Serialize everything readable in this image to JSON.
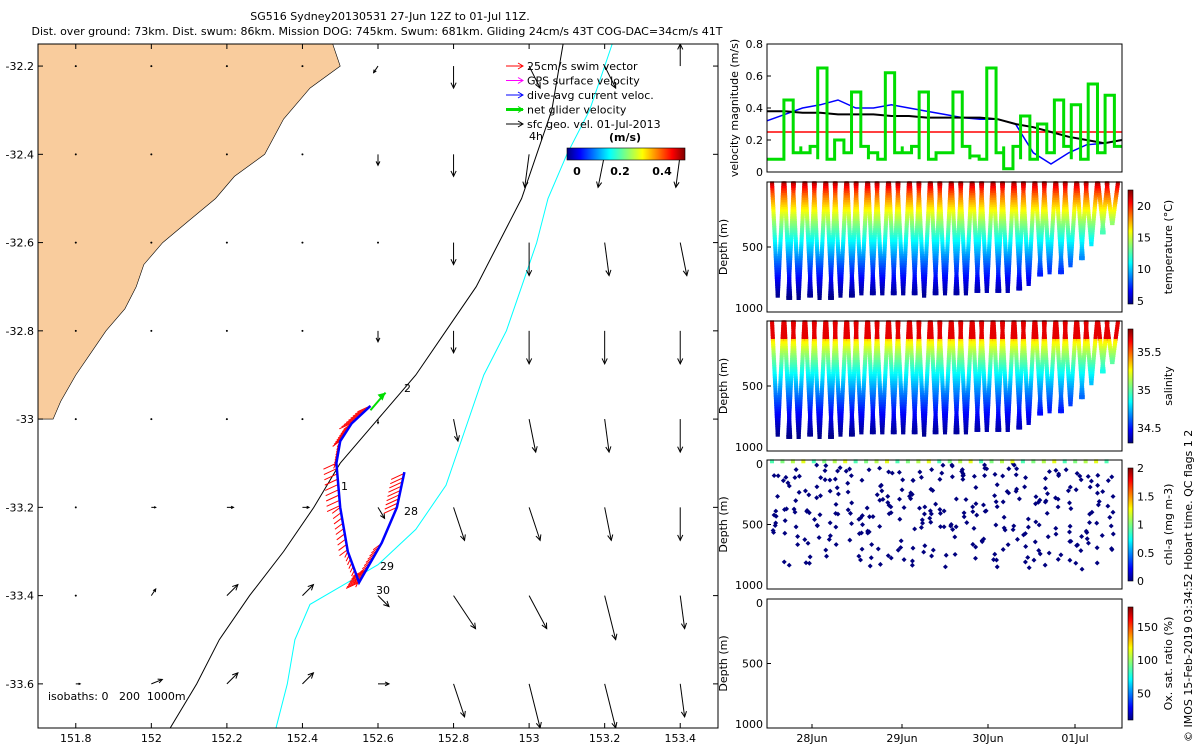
{
  "header": {
    "title_line1": "SG516 Sydney20130531 27-Jun 12Z to 01-Jul 11Z.",
    "title_line2": "Dist. over ground: 73km. Dist. swum: 86km. Mission DOG: 745km. Swum: 681km. Gliding 24cm/s 43T COG-DAC=34cm/s 41T"
  },
  "credit": "© IMOS 15-Feb-2019 03:34:52 Hobart time. QC flags 1 2",
  "chart_data": [
    {
      "type": "scatter",
      "panel": "map",
      "xlim": [
        151.7,
        153.5
      ],
      "ylim": [
        -33.7,
        -32.15
      ],
      "xticks": [
        "151.8",
        "152",
        "152.2",
        "152.4",
        "152.6",
        "152.8",
        "153",
        "153.2",
        "153.4"
      ],
      "yticks": [
        "-32.2",
        "-32.4",
        "-32.6",
        "-32.8",
        "-33",
        "-33.2",
        "-33.4",
        "-33.6"
      ],
      "legend": {
        "placement": "top-right",
        "entries": [
          {
            "label": "25cm/s swim vector",
            "color": "#ff0000"
          },
          {
            "label": "GPS surface velocity",
            "color": "#ff00ff"
          },
          {
            "label": "dive-avg current veloc.",
            "color": "#0000ff"
          },
          {
            "label": "net glider velocity",
            "color": "#00dd00"
          },
          {
            "label": "sfc geo. vel. 01-Jul-2013",
            "color": "#000000"
          }
        ]
      },
      "colorbar": {
        "label": "(m/s)",
        "ticks": [
          "0",
          "0.2",
          "0.4"
        ]
      },
      "isobath_note": "isobaths: 0   200  1000m",
      "annotations": [
        "4h",
        "2",
        "1",
        "28",
        "29",
        "30"
      ],
      "coastline": [
        [
          151.7,
          -32.15
        ],
        [
          152.48,
          -32.15
        ],
        [
          152.5,
          -32.2
        ],
        [
          152.42,
          -32.25
        ],
        [
          152.35,
          -32.32
        ],
        [
          152.3,
          -32.4
        ],
        [
          152.22,
          -32.45
        ],
        [
          152.17,
          -32.5
        ],
        [
          152.1,
          -32.55
        ],
        [
          152.03,
          -32.6
        ],
        [
          151.98,
          -32.65
        ],
        [
          151.96,
          -32.7
        ],
        [
          151.93,
          -32.75
        ],
        [
          151.88,
          -32.8
        ],
        [
          151.84,
          -32.85
        ],
        [
          151.8,
          -32.9
        ],
        [
          151.76,
          -32.96
        ],
        [
          151.74,
          -33.0
        ],
        [
          151.7,
          -33.0
        ]
      ],
      "isobath_200": [
        [
          152.05,
          -33.7
        ],
        [
          152.12,
          -33.6
        ],
        [
          152.18,
          -33.5
        ],
        [
          152.26,
          -33.4
        ],
        [
          152.35,
          -33.3
        ],
        [
          152.43,
          -33.2
        ],
        [
          152.5,
          -33.1
        ],
        [
          152.6,
          -33.0
        ],
        [
          152.7,
          -32.9
        ],
        [
          152.78,
          -32.8
        ],
        [
          152.86,
          -32.7
        ],
        [
          152.92,
          -32.6
        ],
        [
          152.98,
          -32.5
        ],
        [
          153.02,
          -32.4
        ],
        [
          153.06,
          -32.3
        ],
        [
          153.08,
          -32.2
        ],
        [
          153.09,
          -32.15
        ]
      ],
      "isobath_1000": [
        [
          152.33,
          -33.7
        ],
        [
          152.36,
          -33.6
        ],
        [
          152.38,
          -33.5
        ],
        [
          152.42,
          -33.42
        ],
        [
          152.5,
          -33.38
        ],
        [
          152.6,
          -33.33
        ],
        [
          152.7,
          -33.25
        ],
        [
          152.78,
          -33.15
        ],
        [
          152.84,
          -33.0
        ],
        [
          152.88,
          -32.9
        ],
        [
          152.94,
          -32.8
        ],
        [
          152.98,
          -32.7
        ],
        [
          153.02,
          -32.6
        ],
        [
          153.05,
          -32.5
        ],
        [
          153.1,
          -32.4
        ],
        [
          153.16,
          -32.3
        ],
        [
          153.2,
          -32.2
        ],
        [
          153.22,
          -32.15
        ]
      ],
      "glider_track": [
        [
          152.58,
          -32.97
        ],
        [
          152.53,
          -33.01
        ],
        [
          152.5,
          -33.05
        ],
        [
          152.49,
          -33.1
        ],
        [
          152.5,
          -33.2
        ],
        [
          152.52,
          -33.3
        ],
        [
          152.55,
          -33.37
        ],
        [
          152.57,
          -33.34
        ],
        [
          152.61,
          -33.28
        ],
        [
          152.65,
          -33.2
        ],
        [
          152.67,
          -33.12
        ]
      ],
      "net_velocity_arrow": [
        [
          152.58,
          -32.98
        ],
        [
          152.62,
          -32.94
        ]
      ],
      "grid_arrows": {
        "lon": [
          151.8,
          152.0,
          152.2,
          152.4,
          152.6,
          152.8,
          153.0,
          153.2,
          153.4
        ],
        "lat": [
          -32.2,
          -32.4,
          -32.6,
          -32.8,
          -33.0,
          -33.2,
          -33.4,
          -33.6
        ],
        "u": [
          [
            0,
            0,
            0,
            0,
            -0.02,
            0.0,
            0.05,
            0.05,
            0.0
          ],
          [
            0,
            0,
            0,
            0,
            0.0,
            0.0,
            -0.02,
            -0.03,
            -0.02
          ],
          [
            0,
            0,
            0,
            0.0,
            0.0,
            0.0,
            0.0,
            0.02,
            0.03
          ],
          [
            0,
            0,
            0,
            0.0,
            0.0,
            0.0,
            0.0,
            0.0,
            0.0
          ],
          [
            0,
            0,
            0.0,
            0.0,
            0.0,
            0.02,
            0.03,
            0.02,
            0.0
          ],
          [
            0.0,
            0.02,
            0.03,
            0.03,
            0.03,
            0.05,
            0.05,
            0.03,
            0.0
          ],
          [
            0.0,
            0.02,
            0.05,
            0.05,
            0.05,
            0.1,
            0.08,
            0.05,
            0.02
          ],
          [
            0.02,
            0.05,
            0.05,
            0.05,
            0.05,
            0.05,
            0.05,
            0.05,
            0.02
          ]
        ],
        "v": [
          [
            0,
            0,
            0,
            0,
            -0.03,
            -0.1,
            -0.1,
            -0.1,
            0.1
          ],
          [
            0,
            0,
            0,
            0,
            -0.05,
            -0.1,
            -0.15,
            -0.15,
            -0.15
          ],
          [
            0,
            0,
            0,
            0.0,
            0.0,
            -0.1,
            -0.15,
            -0.15,
            -0.15
          ],
          [
            0,
            0,
            0,
            0.0,
            -0.05,
            -0.1,
            -0.15,
            -0.15,
            -0.15
          ],
          [
            0,
            0,
            0.0,
            0.0,
            -0.02,
            -0.1,
            -0.15,
            -0.15,
            -0.15
          ],
          [
            0.0,
            0.0,
            0.0,
            0.0,
            -0.05,
            -0.15,
            -0.15,
            -0.15,
            -0.15
          ],
          [
            0.0,
            0.03,
            0.05,
            0.05,
            -0.05,
            -0.15,
            -0.15,
            -0.2,
            -0.15
          ],
          [
            0.0,
            0.02,
            0.05,
            0.05,
            0.0,
            -0.15,
            -0.2,
            -0.2,
            -0.15
          ]
        ]
      }
    },
    {
      "type": "line",
      "panel": "velocity",
      "ylabel": "velocity magnitude (m/s)",
      "ylim": [
        0,
        0.8
      ],
      "yticks": [
        "0",
        "0.2",
        "0.4",
        "0.6",
        "0.8"
      ],
      "series": [
        {
          "color": "#ff0000",
          "values": [
            0.25,
            0.25,
            0.25,
            0.25,
            0.25,
            0.25,
            0.25,
            0.25,
            0.25,
            0.25,
            0.25,
            0.25,
            0.25,
            0.25,
            0.25,
            0.25,
            0.25,
            0.25,
            0.25,
            0.25,
            0.25
          ]
        },
        {
          "color": "#0000ff",
          "values": [
            0.32,
            0.36,
            0.4,
            0.42,
            0.45,
            0.4,
            0.4,
            0.42,
            0.4,
            0.38,
            0.36,
            0.34,
            0.33,
            0.33,
            0.3,
            0.12,
            0.05,
            0.12,
            0.17,
            0.18,
            0.2
          ]
        },
        {
          "color": "#000000",
          "values": [
            0.38,
            0.38,
            0.37,
            0.37,
            0.36,
            0.36,
            0.36,
            0.35,
            0.35,
            0.34,
            0.34,
            0.34,
            0.34,
            0.33,
            0.3,
            0.28,
            0.25,
            0.22,
            0.2,
            0.18,
            0.2
          ]
        },
        {
          "color": "#00dd00",
          "values": [
            0.08,
            0.45,
            0.12,
            0.65,
            0.2,
            0.5,
            0.12,
            0.62,
            0.12,
            0.5,
            0.12,
            0.5,
            0.1,
            0.65,
            0.02,
            0.35,
            0.3,
            0.45,
            0.42,
            0.55,
            0.48
          ]
        }
      ]
    },
    {
      "type": "scatter",
      "panel": "temperature",
      "ylabel": "Depth (m)",
      "ylim": [
        1000,
        0
      ],
      "yticks": [
        "500",
        "1000"
      ],
      "colorbar": {
        "label": "temperature (°C)",
        "range": [
          4.5,
          22.5
        ],
        "ticks": [
          "5",
          "10",
          "15",
          "20"
        ]
      },
      "dives": 33,
      "max_depth_per_dive": [
        880,
        900,
        900,
        890,
        900,
        900,
        880,
        880,
        870,
        860,
        870,
        860,
        860,
        870,
        880,
        870,
        860,
        860,
        860,
        850,
        850,
        840,
        840,
        830,
        800,
        720,
        700,
        700,
        650,
        600,
        480,
        400,
        330
      ]
    },
    {
      "type": "scatter",
      "panel": "salinity",
      "ylabel": "Depth (m)",
      "ylim": [
        1000,
        0
      ],
      "yticks": [
        "500",
        "1000"
      ],
      "colorbar": {
        "label": "salinity",
        "range": [
          34.3,
          35.8
        ],
        "ticks": [
          "34.5",
          "35",
          "35.5"
        ]
      },
      "dives": 33,
      "max_depth_per_dive": [
        880,
        900,
        900,
        890,
        900,
        900,
        880,
        880,
        870,
        860,
        870,
        860,
        860,
        870,
        880,
        870,
        860,
        860,
        860,
        850,
        850,
        840,
        840,
        830,
        800,
        720,
        700,
        700,
        650,
        600,
        480,
        400,
        330
      ]
    },
    {
      "type": "scatter",
      "panel": "chlorophyll",
      "ylabel": "Depth (m)",
      "ylim": [
        1000,
        0
      ],
      "yticks": [
        "0",
        "500",
        "1000"
      ],
      "colorbar": {
        "label": "chl-a (mg m-3)",
        "range": [
          0,
          2
        ],
        "ticks": [
          "0",
          "0.5",
          "1",
          "1.5",
          "2"
        ]
      },
      "dives": 33
    },
    {
      "type": "scatter",
      "panel": "oxygen",
      "ylabel": "Depth (m)",
      "ylim": [
        1000,
        0
      ],
      "yticks": [
        "0",
        "500",
        "1000"
      ],
      "colorbar": {
        "label": "Ox. sat. ratio (%)",
        "range": [
          10,
          180
        ],
        "ticks": [
          "50",
          "100",
          "150"
        ]
      },
      "xticks": [
        "28Jun",
        "29Jun",
        "30Jun",
        "01Jul"
      ]
    }
  ]
}
